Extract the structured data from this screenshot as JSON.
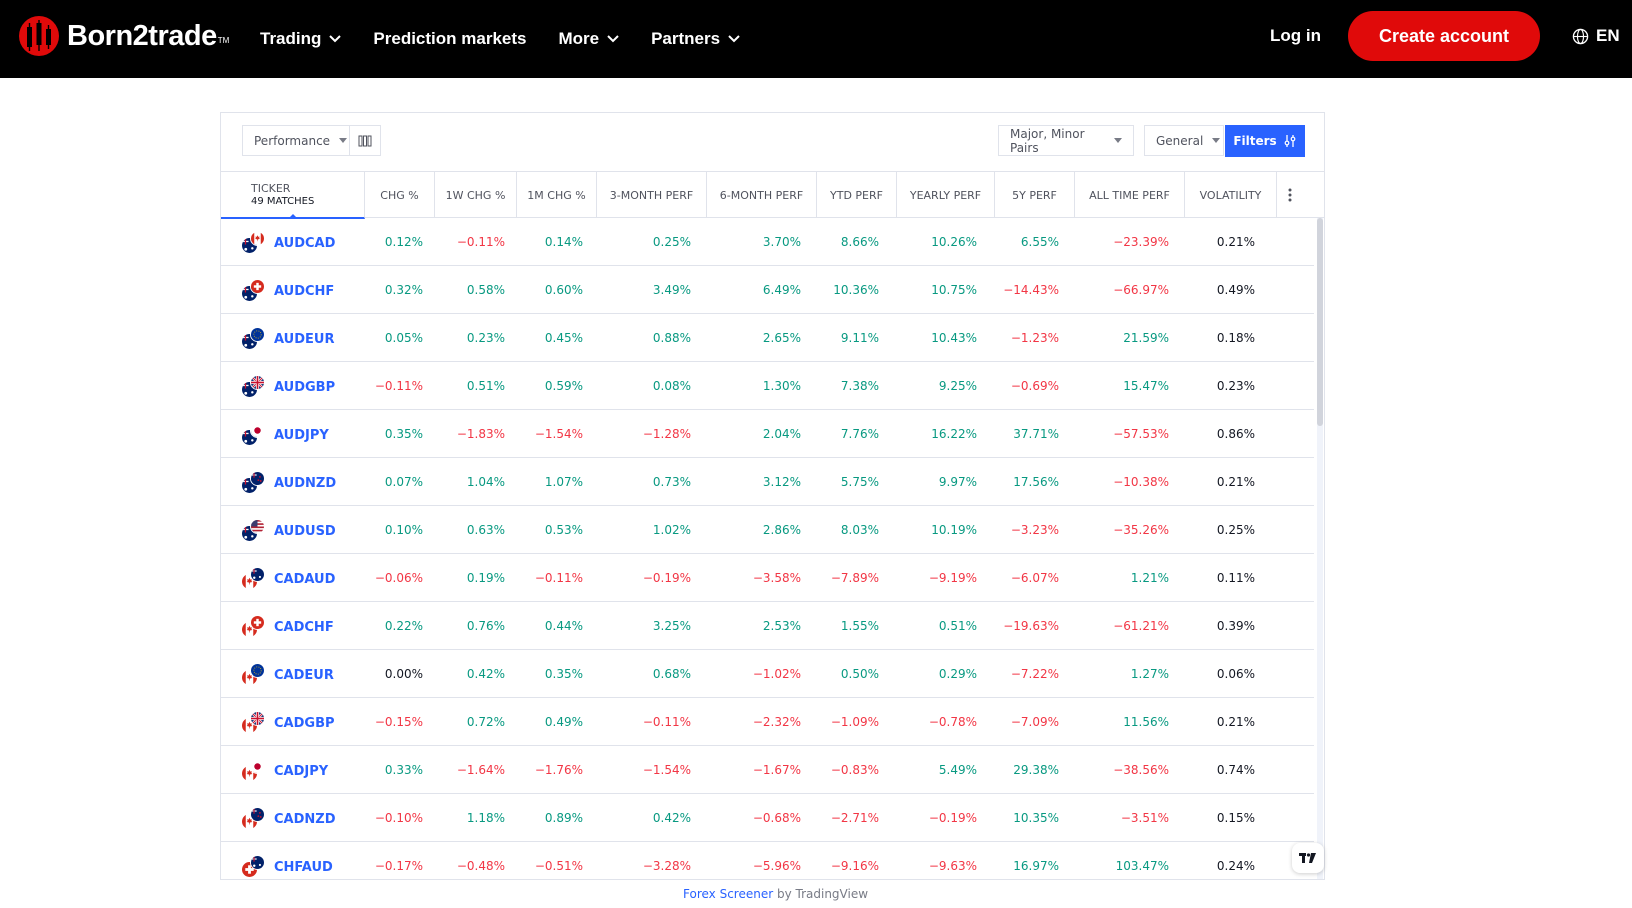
{
  "header": {
    "brand": "Born2trade",
    "brand_tm": "TM",
    "nav": [
      {
        "label": "Trading",
        "has_dropdown": true
      },
      {
        "label": "Prediction markets",
        "has_dropdown": false
      },
      {
        "label": "More",
        "has_dropdown": true
      },
      {
        "label": "Partners",
        "has_dropdown": true
      }
    ],
    "login_label": "Log in",
    "create_account_label": "Create account",
    "language": "EN",
    "brand_color": "#e00a0a"
  },
  "screener": {
    "view_select": "Performance",
    "market_select": "Major, Minor Pairs",
    "category_select": "General",
    "filters_label": "Filters",
    "ticker_header": "Ticker",
    "matches_label": "49 matches",
    "columns": [
      "CHG %",
      "1W CHG %",
      "1M CHG %",
      "3-Month Perf",
      "6-Month Perf",
      "YTD Perf",
      "Yearly Perf",
      "5Y Perf",
      "All Time Perf",
      "Volatility"
    ],
    "rows": [
      {
        "ticker": "AUDCAD",
        "flags": [
          "au",
          "ca"
        ],
        "values": [
          "0.12%",
          "−0.11%",
          "0.14%",
          "0.25%",
          "3.70%",
          "8.66%",
          "10.26%",
          "6.55%",
          "−23.39%",
          "0.21%"
        ]
      },
      {
        "ticker": "AUDCHF",
        "flags": [
          "au",
          "ch"
        ],
        "values": [
          "0.32%",
          "0.58%",
          "0.60%",
          "3.49%",
          "6.49%",
          "10.36%",
          "10.75%",
          "−14.43%",
          "−66.97%",
          "0.49%"
        ]
      },
      {
        "ticker": "AUDEUR",
        "flags": [
          "au",
          "eu"
        ],
        "values": [
          "0.05%",
          "0.23%",
          "0.45%",
          "0.88%",
          "2.65%",
          "9.11%",
          "10.43%",
          "−1.23%",
          "21.59%",
          "0.18%"
        ]
      },
      {
        "ticker": "AUDGBP",
        "flags": [
          "au",
          "gb"
        ],
        "values": [
          "−0.11%",
          "0.51%",
          "0.59%",
          "0.08%",
          "1.30%",
          "7.38%",
          "9.25%",
          "−0.69%",
          "15.47%",
          "0.23%"
        ]
      },
      {
        "ticker": "AUDJPY",
        "flags": [
          "au",
          "jp"
        ],
        "values": [
          "0.35%",
          "−1.83%",
          "−1.54%",
          "−1.28%",
          "2.04%",
          "7.76%",
          "16.22%",
          "37.71%",
          "−57.53%",
          "0.86%"
        ]
      },
      {
        "ticker": "AUDNZD",
        "flags": [
          "au",
          "nz"
        ],
        "values": [
          "0.07%",
          "1.04%",
          "1.07%",
          "0.73%",
          "3.12%",
          "5.75%",
          "9.97%",
          "17.56%",
          "−10.38%",
          "0.21%"
        ]
      },
      {
        "ticker": "AUDUSD",
        "flags": [
          "au",
          "us"
        ],
        "values": [
          "0.10%",
          "0.63%",
          "0.53%",
          "1.02%",
          "2.86%",
          "8.03%",
          "10.19%",
          "−3.23%",
          "−35.26%",
          "0.25%"
        ]
      },
      {
        "ticker": "CADAUD",
        "flags": [
          "ca",
          "au"
        ],
        "values": [
          "−0.06%",
          "0.19%",
          "−0.11%",
          "−0.19%",
          "−3.58%",
          "−7.89%",
          "−9.19%",
          "−6.07%",
          "1.21%",
          "0.11%"
        ]
      },
      {
        "ticker": "CADCHF",
        "flags": [
          "ca",
          "ch"
        ],
        "values": [
          "0.22%",
          "0.76%",
          "0.44%",
          "3.25%",
          "2.53%",
          "1.55%",
          "0.51%",
          "−19.63%",
          "−61.21%",
          "0.39%"
        ]
      },
      {
        "ticker": "CADEUR",
        "flags": [
          "ca",
          "eu"
        ],
        "values": [
          "0.00%",
          "0.42%",
          "0.35%",
          "0.68%",
          "−1.02%",
          "0.50%",
          "0.29%",
          "−7.22%",
          "1.27%",
          "0.06%"
        ]
      },
      {
        "ticker": "CADGBP",
        "flags": [
          "ca",
          "gb"
        ],
        "values": [
          "−0.15%",
          "0.72%",
          "0.49%",
          "−0.11%",
          "−2.32%",
          "−1.09%",
          "−0.78%",
          "−7.09%",
          "11.56%",
          "0.21%"
        ]
      },
      {
        "ticker": "CADJPY",
        "flags": [
          "ca",
          "jp"
        ],
        "values": [
          "0.33%",
          "−1.64%",
          "−1.76%",
          "−1.54%",
          "−1.67%",
          "−0.83%",
          "5.49%",
          "29.38%",
          "−38.56%",
          "0.74%"
        ]
      },
      {
        "ticker": "CADNZD",
        "flags": [
          "ca",
          "nz"
        ],
        "values": [
          "−0.10%",
          "1.18%",
          "0.89%",
          "0.42%",
          "−0.68%",
          "−2.71%",
          "−0.19%",
          "10.35%",
          "−3.51%",
          "0.15%"
        ]
      },
      {
        "ticker": "CHFAUD",
        "flags": [
          "ch",
          "au"
        ],
        "values": [
          "−0.17%",
          "−0.48%",
          "−0.51%",
          "−3.28%",
          "−5.96%",
          "−9.16%",
          "−9.63%",
          "16.97%",
          "103.47%",
          "0.24%"
        ]
      }
    ],
    "colors": {
      "positive": "#089981",
      "negative": "#f23645",
      "link": "#2962ff"
    }
  },
  "footer": {
    "link_text": "Forex Screener",
    "by_text": " by ",
    "provider": "TradingView"
  }
}
